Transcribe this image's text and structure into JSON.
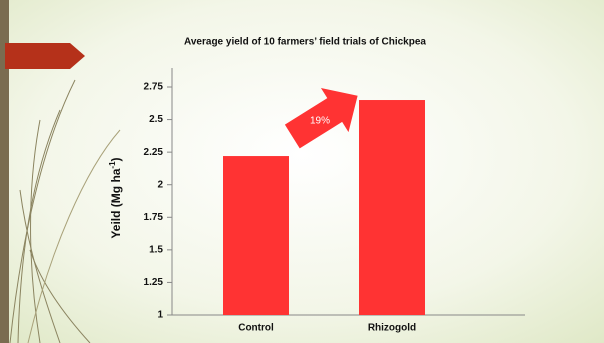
{
  "chart_data": {
    "type": "bar",
    "title": "Average yield of 10 farmers’ field trials of Chickpea",
    "y_label": "Yeild (Mg ha",
    "y_label_superscript": "-1",
    "y_label_end": ")",
    "categories": [
      "Control",
      "Rhizogold"
    ],
    "values": [
      2.22,
      2.65
    ],
    "color": "#ff3333",
    "ylim": [
      1,
      2.75
    ],
    "yticks": [
      1,
      1.25,
      1.5,
      1.75,
      2,
      2.25,
      2.5,
      2.75
    ],
    "annotation": "19%"
  }
}
